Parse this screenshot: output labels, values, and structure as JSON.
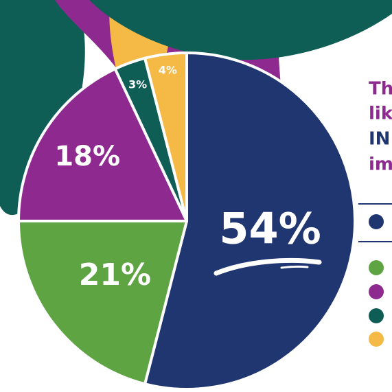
{
  "chart_data": {
    "type": "pie",
    "values": [
      54,
      21,
      18,
      3,
      4
    ],
    "value_labels": [
      "54%",
      "21%",
      "18%",
      "3%",
      "4%"
    ],
    "colors": [
      "#1f3670",
      "#5ea443",
      "#8e2a8f",
      "#0e5e56",
      "#f5b945"
    ],
    "legend_colors": [
      "#1f3670",
      "#5ea443",
      "#8e2a8f",
      "#0e5e56",
      "#f5b945"
    ],
    "side_text": [
      "Th",
      "lik",
      "IN",
      "im"
    ]
  }
}
